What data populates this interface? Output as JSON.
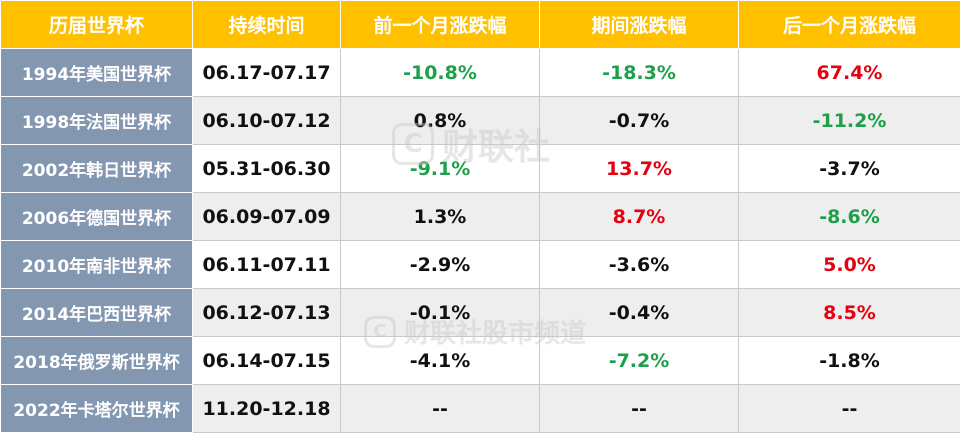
{
  "headers": [
    "历届世界杯",
    "持续时间",
    "前一个月涨跌幅",
    "期间涨跌幅",
    "后一个月涨跌幅"
  ],
  "rows": [
    {
      "name": "1994年美国世界杯",
      "duration": "06.17-07.17",
      "before": "-10.8%",
      "before_tone": "neg",
      "during": "-18.3%",
      "during_tone": "neg",
      "after": "67.4%",
      "after_tone": "pos"
    },
    {
      "name": "1998年法国世界杯",
      "duration": "06.10-07.12",
      "before": "0.8%",
      "before_tone": "",
      "during": "-0.7%",
      "during_tone": "",
      "after": "-11.2%",
      "after_tone": "neg"
    },
    {
      "name": "2002年韩日世界杯",
      "duration": "05.31-06.30",
      "before": "-9.1%",
      "before_tone": "neg",
      "during": "13.7%",
      "during_tone": "pos",
      "after": "-3.7%",
      "after_tone": ""
    },
    {
      "name": "2006年德国世界杯",
      "duration": "06.09-07.09",
      "before": "1.3%",
      "before_tone": "",
      "during": "8.7%",
      "during_tone": "pos",
      "after": "-8.6%",
      "after_tone": "neg"
    },
    {
      "name": "2010年南非世界杯",
      "duration": "06.11-07.11",
      "before": "-2.9%",
      "before_tone": "",
      "during": "-3.6%",
      "during_tone": "",
      "after": "5.0%",
      "after_tone": "pos"
    },
    {
      "name": "2014年巴西世界杯",
      "duration": "06.12-07.13",
      "before": "-0.1%",
      "before_tone": "",
      "during": "-0.4%",
      "during_tone": "",
      "after": "8.5%",
      "after_tone": "pos"
    },
    {
      "name": "2018年俄罗斯世界杯",
      "duration": "06.14-07.15",
      "before": "-4.1%",
      "before_tone": "",
      "during": "-7.2%",
      "during_tone": "neg",
      "after": "-1.8%",
      "after_tone": ""
    },
    {
      "name": "2022年卡塔尔世界杯",
      "duration": "11.20-12.18",
      "before": "--",
      "before_tone": "",
      "during": "--",
      "during_tone": "",
      "after": "--",
      "after_tone": ""
    }
  ],
  "watermark": {
    "logo_glyph": "C",
    "primary": "财联社",
    "secondary": "财联社股市频道"
  },
  "colors": {
    "header_bg": "#FFC000",
    "name_col_bg": "#8497B0",
    "positive": "#e60012",
    "negative": "#1ca04a"
  }
}
